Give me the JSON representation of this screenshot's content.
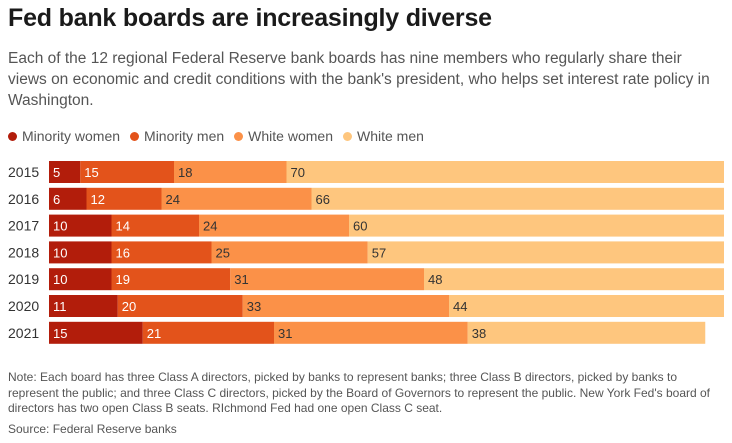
{
  "title": "Fed bank boards are increasingly diverse",
  "subtitle": "Each of the 12 regional Federal Reserve bank boards has nine members who regularly share their views on economic and credit conditions with the bank's president, who helps set interest rate policy in Washington.",
  "note": "Note: Each board has three Class A directors, picked by banks to represent banks; three Class B directors, picked by banks to represent the public; and three Class C directors, picked by the Board of Governors to represent the public. New York Fed's board of directors has two open Class B seats. RIchmond Fed had one open Class C seat.",
  "source": "Source: Federal Reserve banks",
  "legend": [
    {
      "label": "Minority women",
      "color": "#b21d0b"
    },
    {
      "label": "Minority men",
      "color": "#e3531b"
    },
    {
      "label": "White women",
      "color": "#fb9148"
    },
    {
      "label": "White men",
      "color": "#fec67e"
    }
  ],
  "chart_data": {
    "type": "bar",
    "orientation": "horizontal",
    "stacked": true,
    "categories": [
      "2015",
      "2016",
      "2017",
      "2018",
      "2019",
      "2020",
      "2021"
    ],
    "series": [
      {
        "name": "Minority women",
        "color": "#b21d0b",
        "values": [
          5,
          6,
          10,
          10,
          10,
          11,
          15
        ]
      },
      {
        "name": "Minority men",
        "color": "#e3531b",
        "values": [
          15,
          12,
          14,
          16,
          19,
          20,
          21
        ]
      },
      {
        "name": "White women",
        "color": "#fb9148",
        "values": [
          18,
          24,
          24,
          25,
          31,
          33,
          31
        ]
      },
      {
        "name": "White men",
        "color": "#fec67e",
        "values": [
          70,
          66,
          60,
          57,
          48,
          44,
          38
        ]
      }
    ],
    "xlim": [
      0,
      108
    ],
    "grid": false,
    "legend_position": "top-left"
  }
}
